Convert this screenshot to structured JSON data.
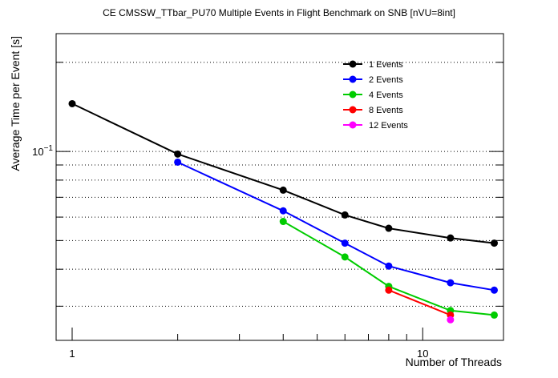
{
  "chart_data": {
    "type": "line",
    "title": "CE CMSSW_TTbar_PU70 Multiple Events in Flight Benchmark on SNB [nVU=8int]",
    "xlabel": "Number of Threads",
    "ylabel": "Average Time per Event [s]",
    "xscale": "log",
    "yscale": "log",
    "xlim": [
      0.9,
      17
    ],
    "ylim": [
      0.023,
      0.25
    ],
    "x_tick_labels": [
      {
        "value": 1,
        "label": "1"
      },
      {
        "value": 10,
        "label": "10"
      }
    ],
    "y_tick_labels": [
      {
        "value": 0.1,
        "base": "10",
        "exp": "−1"
      }
    ],
    "grid": "horizontal dotted",
    "legend": "top-right",
    "series": [
      {
        "name": "1 Events",
        "color": "#000000",
        "x": [
          1,
          2,
          4,
          6,
          8,
          12,
          16
        ],
        "y": [
          0.145,
          0.098,
          0.074,
          0.061,
          0.055,
          0.051,
          0.049
        ]
      },
      {
        "name": "2 Events",
        "color": "#0000ff",
        "x": [
          2,
          4,
          6,
          8,
          12,
          16
        ],
        "y": [
          0.092,
          0.063,
          0.049,
          0.041,
          0.036,
          0.034
        ]
      },
      {
        "name": "4 Events",
        "color": "#00cc00",
        "x": [
          4,
          6,
          8,
          12,
          16
        ],
        "y": [
          0.058,
          0.044,
          0.035,
          0.029,
          0.028
        ]
      },
      {
        "name": "8 Events",
        "color": "#ff0000",
        "x": [
          8,
          12
        ],
        "y": [
          0.034,
          0.028
        ]
      },
      {
        "name": "12 Events",
        "color": "#ff00ff",
        "x": [
          12
        ],
        "y": [
          0.027
        ]
      }
    ]
  }
}
